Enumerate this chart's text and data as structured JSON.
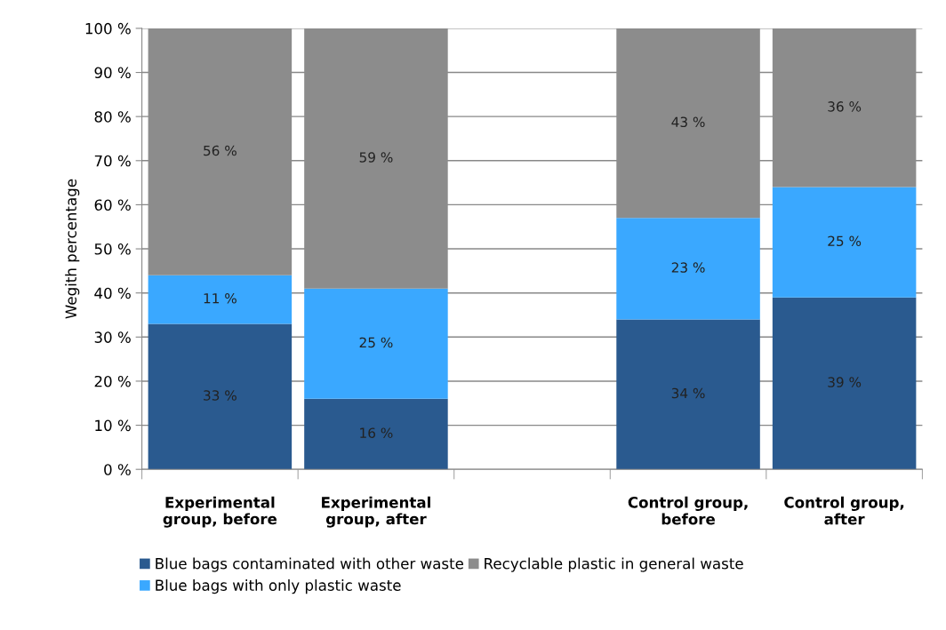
{
  "chart_data": {
    "type": "bar",
    "stacked": true,
    "ylabel": "Wegith percentage",
    "categories": [
      "Experimental\ngroup, before",
      "Experimental\ngroup, after",
      null,
      "Control group,\nbefore",
      "Control group,\nafter"
    ],
    "series": [
      {
        "name": "Blue bags contaminated with other waste",
        "color": "#2a5a8f",
        "values": [
          33,
          16,
          null,
          34,
          39
        ],
        "value_labels": [
          "33 %",
          "16 %",
          null,
          "34 %",
          "39 %"
        ]
      },
      {
        "name": "Blue bags with only plastic waste",
        "color": "#3aa8ff",
        "values": [
          11,
          25,
          null,
          23,
          25
        ],
        "value_labels": [
          "11 %",
          "25 %",
          null,
          "23 %",
          "25 %"
        ]
      },
      {
        "name": "Recyclable plastic in general waste",
        "color": "#8c8c8c",
        "values": [
          56,
          59,
          null,
          43,
          36
        ],
        "value_labels": [
          "56 %",
          "59 %",
          null,
          "43 %",
          "36 %"
        ]
      }
    ],
    "ylim": [
      0,
      100
    ],
    "yticks": [
      {
        "value": 0,
        "label": "0 %"
      },
      {
        "value": 10,
        "label": "10 %"
      },
      {
        "value": 20,
        "label": "20 %"
      },
      {
        "value": 30,
        "label": "30 %"
      },
      {
        "value": 40,
        "label": "40 %"
      },
      {
        "value": 50,
        "label": "50 %"
      },
      {
        "value": 60,
        "label": "60 %"
      },
      {
        "value": 70,
        "label": "70 %"
      },
      {
        "value": 80,
        "label": "80 %"
      },
      {
        "value": 90,
        "label": "90 %"
      },
      {
        "value": 100,
        "label": "100 %"
      }
    ],
    "grid": "y",
    "legend": "bottom"
  }
}
